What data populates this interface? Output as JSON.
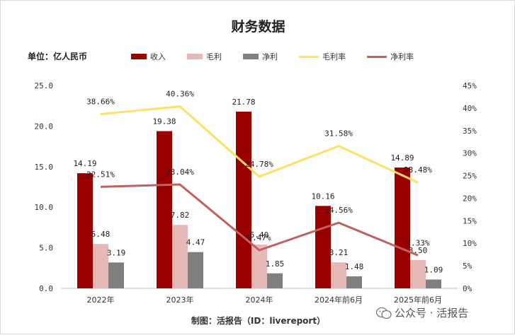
{
  "title": "财务数据",
  "unit_label": "单位：亿人民币",
  "footer": "制图：活报告（ID：livereport）",
  "watermark": "公众号 · 活报告",
  "colors": {
    "revenue": "#990000",
    "gross_profit": "#e6b8b8",
    "net_profit": "#7f7f7f",
    "gross_margin": "#ffe066",
    "net_margin": "#c06060"
  },
  "chart_data": {
    "type": "bar",
    "title": "财务数据",
    "categories": [
      "2022年",
      "2023年",
      "2024年",
      "2024年前6月",
      "2025年前6月"
    ],
    "series": [
      {
        "name": "收入",
        "type": "bar",
        "axis": "left",
        "values": [
          14.19,
          19.38,
          21.78,
          10.16,
          14.89
        ],
        "labels": [
          "14.19",
          "19.38",
          "21.78",
          "10.16",
          "14.89"
        ]
      },
      {
        "name": "毛利",
        "type": "bar",
        "axis": "left",
        "values": [
          5.48,
          7.82,
          5.4,
          3.21,
          3.5
        ],
        "labels": [
          "5.48",
          "7.82",
          "5.40",
          "3.21",
          "3.50"
        ]
      },
      {
        "name": "净利",
        "type": "bar",
        "axis": "left",
        "values": [
          3.19,
          4.47,
          1.85,
          1.48,
          1.09
        ],
        "labels": [
          "3.19",
          "4.47",
          "1.85",
          "1.48",
          "1.09"
        ]
      },
      {
        "name": "毛利率",
        "type": "line",
        "axis": "right",
        "values": [
          38.66,
          40.36,
          24.78,
          31.58,
          23.48
        ],
        "labels": [
          "38.66%",
          "40.36%",
          "24.78%",
          "31.58%",
          "23.48%"
        ]
      },
      {
        "name": "净利率",
        "type": "line",
        "axis": "right",
        "values": [
          22.51,
          23.04,
          8.47,
          14.56,
          7.33
        ],
        "labels": [
          "22.51%",
          "23.04%",
          "8.47%",
          "14.56%",
          "7.33%"
        ]
      }
    ],
    "y_left": {
      "min": 0,
      "max": 25,
      "ticks": [
        "0.0",
        "5.0",
        "10.0",
        "15.0",
        "20.0",
        "25.0"
      ]
    },
    "y_right": {
      "min": 0,
      "max": 45,
      "ticks": [
        "0%",
        "5%",
        "10%",
        "15%",
        "20%",
        "25%",
        "30%",
        "35%",
        "40%",
        "45%"
      ]
    },
    "legend_position": "top",
    "grid": false
  }
}
